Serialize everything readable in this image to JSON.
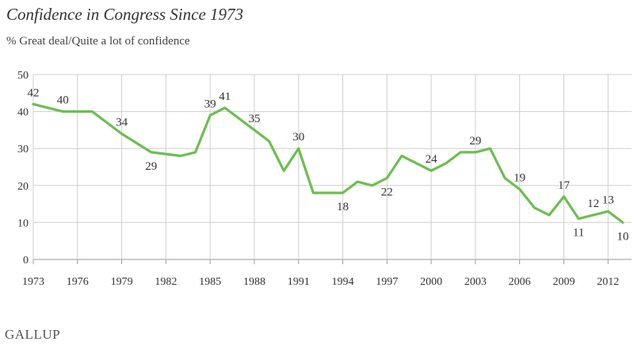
{
  "chart_data": {
    "type": "line",
    "title": "Confidence in Congress Since 1973",
    "subtitle": "% Great deal/Quite a lot of confidence",
    "brand": "GALLUP",
    "ylim": [
      0,
      50
    ],
    "yticks": [
      0,
      10,
      20,
      30,
      40,
      50
    ],
    "xlim": [
      1973,
      2013.6
    ],
    "xticks": [
      1973,
      1976,
      1979,
      1982,
      1985,
      1988,
      1991,
      1994,
      1997,
      2000,
      2003,
      2006,
      2009,
      2012
    ],
    "grid": true,
    "line_color": "#6cbf50",
    "series": [
      {
        "x": [
          1973,
          1975,
          1977,
          1979,
          1981,
          1983,
          1984,
          1985,
          1986,
          1987,
          1988,
          1989,
          1990,
          1991,
          1992,
          1993,
          1994,
          1995,
          1996,
          1997,
          1998,
          1999,
          2000,
          2001,
          2002,
          2003,
          2004,
          2005,
          2006,
          2007,
          2008,
          2009,
          2010,
          2011,
          2012,
          2013
        ],
        "values": [
          42,
          40,
          40,
          34,
          29,
          28,
          29,
          39,
          41,
          38,
          35,
          32,
          24,
          30,
          18,
          18,
          18,
          21,
          20,
          22,
          28,
          26,
          24,
          26,
          29,
          29,
          30,
          22,
          19,
          14,
          12,
          17,
          11,
          12,
          13,
          10
        ]
      }
    ],
    "data_labels": [
      {
        "x": 1973,
        "y": 42,
        "text": "42",
        "pos": "above"
      },
      {
        "x": 1975,
        "y": 40,
        "text": "40",
        "pos": "above"
      },
      {
        "x": 1979,
        "y": 34,
        "text": "34",
        "pos": "above"
      },
      {
        "x": 1981,
        "y": 29,
        "text": "29",
        "pos": "below"
      },
      {
        "x": 1985,
        "y": 39,
        "text": "39",
        "pos": "above"
      },
      {
        "x": 1986,
        "y": 41,
        "text": "41",
        "pos": "above"
      },
      {
        "x": 1988,
        "y": 35,
        "text": "35",
        "pos": "above"
      },
      {
        "x": 1991,
        "y": 30,
        "text": "30",
        "pos": "above"
      },
      {
        "x": 1994,
        "y": 18,
        "text": "18",
        "pos": "below"
      },
      {
        "x": 1997,
        "y": 22,
        "text": "22",
        "pos": "below"
      },
      {
        "x": 2000,
        "y": 24,
        "text": "24",
        "pos": "above"
      },
      {
        "x": 2003,
        "y": 29,
        "text": "29",
        "pos": "above"
      },
      {
        "x": 2006,
        "y": 19,
        "text": "19",
        "pos": "above"
      },
      {
        "x": 2009,
        "y": 17,
        "text": "17",
        "pos": "above"
      },
      {
        "x": 2010,
        "y": 11,
        "text": "11",
        "pos": "below"
      },
      {
        "x": 2011,
        "y": 12,
        "text": "12",
        "pos": "above"
      },
      {
        "x": 2012,
        "y": 13,
        "text": "13",
        "pos": "above"
      },
      {
        "x": 2013,
        "y": 10,
        "text": "10",
        "pos": "below"
      }
    ]
  }
}
